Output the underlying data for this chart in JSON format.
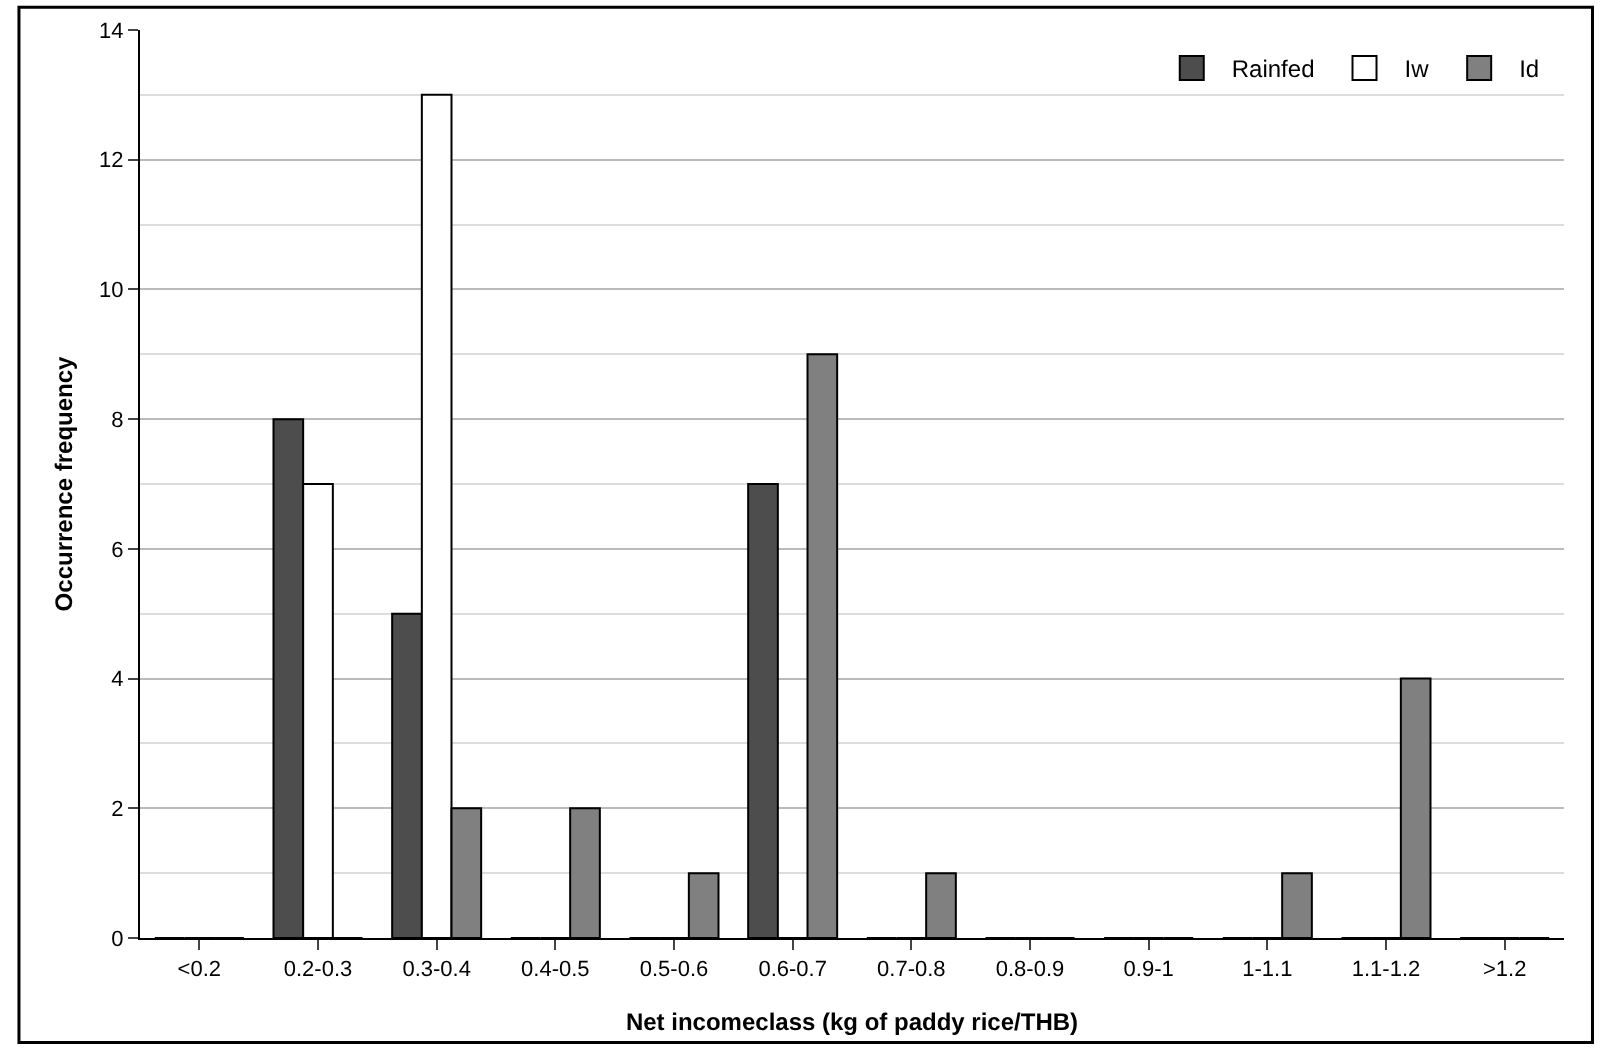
{
  "chart_data": {
    "type": "bar",
    "xlabel": "Net incomeclass (kg of paddy rice/THB)",
    "ylabel": "Occurrence frequency",
    "categories": [
      "<0.2",
      "0.2-0.3",
      "0.3-0.4",
      "0.4-0.5",
      "0.5-0.6",
      "0.6-0.7",
      "0.7-0.8",
      "0.8-0.9",
      "0.9-1",
      "1-1.1",
      "1.1-1.2",
      ">1.2"
    ],
    "series": [
      {
        "name": "Rainfed",
        "color": "#4d4d4d",
        "values": [
          0,
          8,
          5,
          0,
          0,
          7,
          0,
          0,
          0,
          0,
          0,
          0
        ]
      },
      {
        "name": "Iw",
        "color": "#ffffff",
        "values": [
          0,
          7,
          13,
          0,
          0,
          0,
          0,
          0,
          0,
          0,
          0,
          0
        ]
      },
      {
        "name": "Id",
        "color": "#808080",
        "values": [
          0,
          0,
          2,
          2,
          1,
          9,
          1,
          0,
          0,
          1,
          4,
          0
        ]
      }
    ],
    "ylim": [
      0,
      14
    ],
    "yticks": [
      0,
      2,
      4,
      6,
      8,
      10,
      12,
      14
    ],
    "grid": "y",
    "legend": "top right"
  }
}
